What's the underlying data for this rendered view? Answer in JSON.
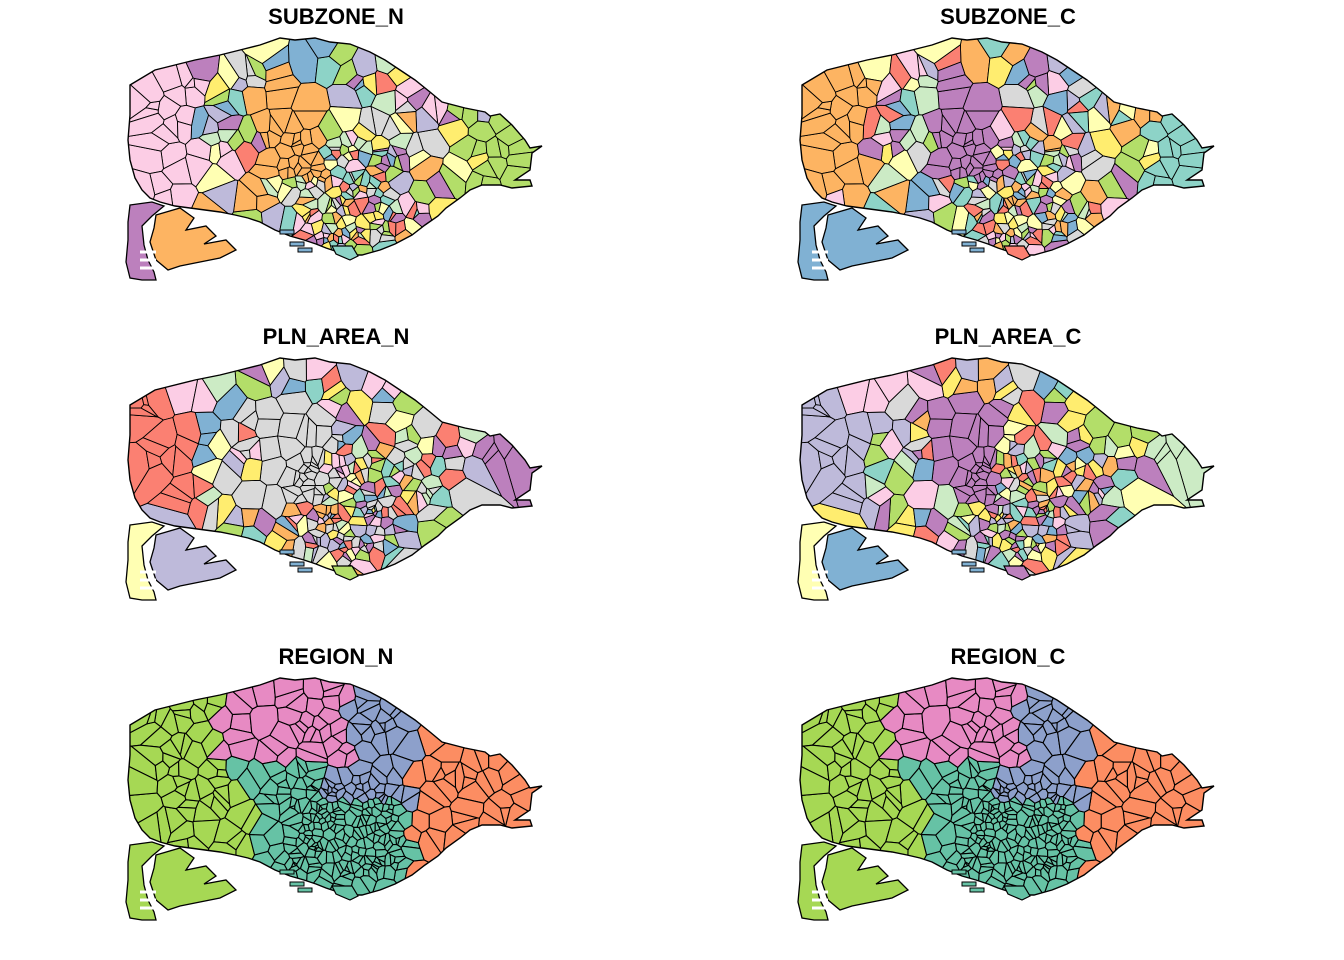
{
  "panels": [
    {
      "title": "SUBZONE_N",
      "palette": [
        "#8dd3c7",
        "#ffffb3",
        "#bebada",
        "#fb8072",
        "#80b1d3",
        "#fdb462",
        "#b3de69",
        "#fccde5",
        "#d9d9d9",
        "#bc80bd",
        "#ccebc5",
        "#ffed6f"
      ],
      "major": {
        "west": "#fccde5",
        "nw": "#bc80bd",
        "central": "#fdb462",
        "east": "#b3de69",
        "southwest": "#bc80bd",
        "jurong": "#fdb462"
      }
    },
    {
      "title": "SUBZONE_C",
      "palette": [
        "#8dd3c7",
        "#ffffb3",
        "#bebada",
        "#fb8072",
        "#80b1d3",
        "#fdb462",
        "#b3de69",
        "#fccde5",
        "#d9d9d9",
        "#bc80bd",
        "#ccebc5",
        "#ffed6f"
      ],
      "major": {
        "west": "#fdb462",
        "nw": "#ffffb3",
        "central": "#bc80bd",
        "east": "#8dd3c7",
        "southwest": "#80b1d3",
        "jurong": "#80b1d3"
      }
    },
    {
      "title": "PLN_AREA_N",
      "palette": [
        "#8dd3c7",
        "#ffffb3",
        "#bebada",
        "#fb8072",
        "#80b1d3",
        "#fdb462",
        "#b3de69",
        "#fccde5",
        "#d9d9d9",
        "#bc80bd",
        "#ccebc5",
        "#ffed6f"
      ],
      "major": {
        "west": "#fb8072",
        "nw": "#fccde5",
        "central": "#d9d9d9",
        "east": "#bc80bd",
        "southwest": "#ffffb3",
        "jurong": "#bebada"
      }
    },
    {
      "title": "PLN_AREA_C",
      "palette": [
        "#8dd3c7",
        "#ffffb3",
        "#bebada",
        "#fb8072",
        "#80b1d3",
        "#fdb462",
        "#b3de69",
        "#fccde5",
        "#d9d9d9",
        "#bc80bd",
        "#ccebc5",
        "#ffed6f"
      ],
      "major": {
        "west": "#bebada",
        "nw": "#fccde5",
        "central": "#bc80bd",
        "east": "#ccebc5",
        "southwest": "#ffffb3",
        "jurong": "#80b1d3"
      }
    },
    {
      "title": "REGION_N",
      "palette": [
        "#66c2a5",
        "#fc8d62",
        "#8da0cb",
        "#e78ac3",
        "#a6d854"
      ],
      "regions": {
        "west": "#a6d854",
        "north": "#e78ac3",
        "northeast": "#8da0cb",
        "east": "#fc8d62",
        "central": "#66c2a5"
      }
    },
    {
      "title": "REGION_C",
      "palette": [
        "#66c2a5",
        "#fc8d62",
        "#8da0cb",
        "#e78ac3",
        "#a6d854"
      ],
      "regions": {
        "west": "#a6d854",
        "north": "#e78ac3",
        "northeast": "#8da0cb",
        "east": "#fc8d62",
        "central": "#66c2a5"
      }
    }
  ]
}
